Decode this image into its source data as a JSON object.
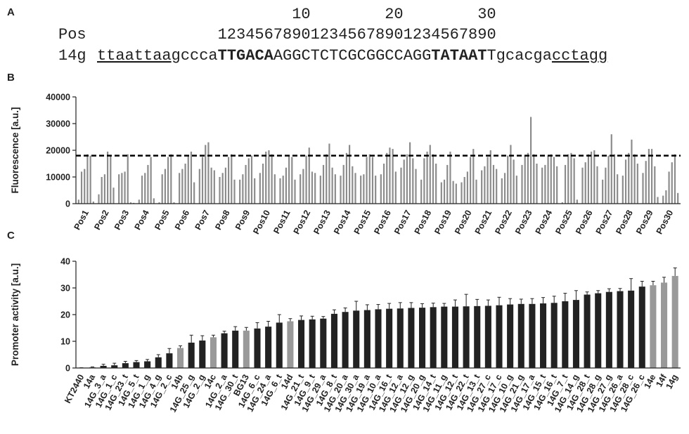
{
  "panel_a": {
    "panel": "A",
    "ruler_name": "Pos",
    "ruler": "123456789012345678901234567890",
    "ruler_ticks": [
      10,
      20,
      30
    ],
    "construct": "14g",
    "sequence": [
      {
        "text": "ttaattaa",
        "style": "underline"
      },
      {
        "text": "gccca",
        "style": "plain"
      },
      {
        "text": "TTGACA",
        "style": "bold"
      },
      {
        "text": "AGGCTCTCGCGGCCAGG",
        "style": "plain"
      },
      {
        "text": "TATAAT",
        "style": "bold"
      },
      {
        "text": "Tgcacga",
        "style": "plain"
      },
      {
        "text": "cctagg",
        "style": "underline"
      }
    ]
  },
  "chart_data": [
    {
      "type": "bar",
      "panel": "B",
      "y_label": "Fluorescence [a.u.]",
      "categories": [
        "Pos1",
        "Pos2",
        "Pos3",
        "Pos4",
        "Pos5",
        "Pos6",
        "Pos7",
        "Pos8",
        "Pos9",
        "Pos10",
        "Pos11",
        "Pos12",
        "Pos13",
        "Pos14",
        "Pos15",
        "Pos16",
        "Pos17",
        "Pos18",
        "Pos19",
        "Pos20",
        "Pos21",
        "Pos22",
        "Pos23",
        "Pos24",
        "Pos25",
        "Pos26",
        "Pos27",
        "Pos28",
        "Pos29",
        "Pos30"
      ],
      "series": [
        {
          "color": "#8c8c8c",
          "values": [
            1500,
            3500,
            11000,
            1500,
            500,
            11500,
            13000,
            10000,
            9000,
            11500,
            9500,
            11000,
            10500,
            10500,
            10500,
            11000,
            13500,
            9000,
            8000,
            8000,
            12500,
            9500,
            14500,
            13500,
            500,
            13500,
            9000,
            10500,
            11500,
            3000
          ]
        },
        {
          "color": "#8c8c8c",
          "values": [
            12000,
            10000,
            11500,
            10500,
            11000,
            13000,
            17500,
            11500,
            11000,
            15000,
            10500,
            13000,
            14500,
            14500,
            11000,
            15000,
            16500,
            17000,
            9000,
            10000,
            14000,
            11500,
            18000,
            14500,
            14500,
            15500,
            13500,
            16500,
            16000,
            5000
          ]
        },
        {
          "color": "#8c8c8c",
          "values": [
            13000,
            11000,
            12000,
            11500,
            13000,
            15000,
            22000,
            13500,
            14500,
            19500,
            13500,
            18000,
            18500,
            19000,
            17500,
            19000,
            18500,
            19500,
            14500,
            12000,
            17500,
            18000,
            19000,
            18000,
            18500,
            18500,
            18000,
            19000,
            20500,
            12000
          ]
        },
        {
          "color": "#8c8c8c",
          "values": [
            18500,
            19500,
            18500,
            14500,
            17500,
            18000,
            23000,
            17500,
            17000,
            20000,
            18000,
            21000,
            22500,
            22000,
            18500,
            21000,
            23000,
            22000,
            19500,
            17500,
            20000,
            22000,
            32500,
            18500,
            19000,
            19500,
            26000,
            24000,
            20500,
            15500
          ]
        },
        {
          "color": "#8c8c8c",
          "values": [
            18000,
            18000,
            500,
            17500,
            18500,
            19500,
            13500,
            18500,
            18000,
            18500,
            17500,
            12000,
            13500,
            14000,
            17500,
            20500,
            17000,
            18500,
            8500,
            20500,
            14500,
            16500,
            18500,
            17500,
            17000,
            20000,
            18500,
            18500,
            14000,
            18500
          ]
        },
        {
          "color": "#8c8c8c",
          "values": [
            800,
            6000,
            300,
            2000,
            500,
            8000,
            12500,
            9000,
            9500,
            11000,
            9000,
            11500,
            11000,
            11500,
            10500,
            12000,
            13000,
            15000,
            7500,
            9000,
            13000,
            10500,
            15000,
            14000,
            1500,
            14000,
            11000,
            15000,
            2500,
            4000
          ]
        }
      ],
      "reference_line": 18000,
      "ylim": [
        0,
        40000
      ],
      "yticks": [
        0,
        10000,
        20000,
        30000,
        40000
      ]
    },
    {
      "type": "bar",
      "panel": "C",
      "y_label": "Promoter activity [a.u.]",
      "categories": [
        "KT2440",
        "14a",
        "14G_3_a",
        "14G_1_c",
        "14G_23_t",
        "14G_5_t",
        "14G_1_g",
        "14G_4_g",
        "14G_2_c",
        "14b",
        "14G_25_g",
        "14G_2_g",
        "14c",
        "14G_2_a",
        "14G_30_t",
        "BG13",
        "14G_6_c",
        "14G_24_a",
        "14G_6_t",
        "14d",
        "14G_21_t",
        "14G_9_t",
        "14G_29_a",
        "14G_8_t",
        "14G_20_a",
        "14G_30_a",
        "14G_19_a",
        "14G_10_a",
        "14G_16_t",
        "14G_12_a",
        "14G_12_g",
        "14G_20_g",
        "14G_14_t",
        "14G_11_g",
        "14G_12_t",
        "14G_22_t",
        "14G_13_t",
        "14G_27_c",
        "14G_17_c",
        "14G_10_g",
        "14G_21_g",
        "14G_17_a",
        "14G_15_t",
        "14G_16_t",
        "14G_7_t",
        "14G_14_g",
        "14G_28_t",
        "14G_28_g",
        "14G_27_g",
        "14G_26_a",
        "14G_28_c",
        "14G_26_c",
        "14e",
        "14f",
        "14g"
      ],
      "values": [
        0,
        0.3,
        0.8,
        1,
        1.8,
        2.2,
        2.5,
        4,
        5.5,
        7.5,
        9.5,
        10.3,
        11.5,
        13,
        14,
        14,
        14.8,
        15.5,
        17,
        17.5,
        18,
        18.2,
        18.5,
        20.3,
        21,
        21.5,
        21.7,
        22,
        22.2,
        22.3,
        22.5,
        22.6,
        22.8,
        23,
        23,
        23.1,
        23.2,
        23.3,
        23.5,
        23.8,
        24,
        24,
        24.2,
        24.4,
        25,
        25.5,
        27.5,
        28,
        28.5,
        28.8,
        29,
        30.5,
        31,
        32,
        34.5
      ],
      "errors": [
        0.1,
        0.1,
        0.6,
        0.8,
        0.7,
        0.6,
        0.7,
        1,
        1.8,
        0.8,
        2.8,
        1.8,
        0.8,
        0.8,
        1.5,
        1.2,
        2.2,
        2,
        3,
        1,
        1.5,
        1.2,
        0.8,
        1.5,
        1.5,
        3.5,
        2,
        1.8,
        2,
        2.2,
        2,
        1.5,
        1.5,
        1.2,
        2.5,
        4.5,
        2.5,
        2.2,
        3,
        2.2,
        1.8,
        2,
        2.2,
        2.5,
        3,
        3.5,
        1,
        1,
        1.2,
        1,
        4.5,
        2,
        1.5,
        2,
        3
      ],
      "colors": [
        "#222",
        "#999",
        "#222",
        "#222",
        "#222",
        "#222",
        "#222",
        "#222",
        "#222",
        "#999",
        "#222",
        "#222",
        "#999",
        "#222",
        "#222",
        "#999",
        "#222",
        "#222",
        "#222",
        "#999",
        "#222",
        "#222",
        "#222",
        "#222",
        "#222",
        "#222",
        "#222",
        "#222",
        "#222",
        "#222",
        "#222",
        "#222",
        "#222",
        "#222",
        "#222",
        "#222",
        "#222",
        "#222",
        "#222",
        "#222",
        "#222",
        "#222",
        "#222",
        "#222",
        "#222",
        "#222",
        "#222",
        "#222",
        "#222",
        "#222",
        "#222",
        "#222",
        "#999",
        "#999",
        "#999"
      ],
      "ylim": [
        0,
        40
      ],
      "yticks": [
        0,
        10,
        20,
        30,
        40
      ]
    }
  ]
}
